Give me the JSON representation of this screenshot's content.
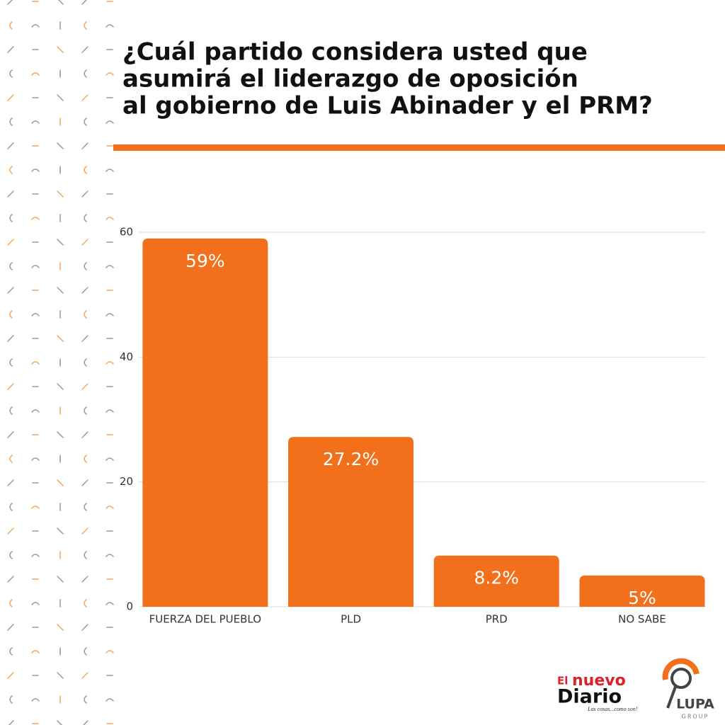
{
  "chart_data": {
    "type": "bar",
    "title": [
      "¿Cuál partido considera usted que",
      "asumirá el liderazgo de oposición",
      "al gobierno de Luis Abinader y el PRM?"
    ],
    "categories": [
      "FUERZA DEL PUEBLO",
      "PLD",
      "PRD",
      "NO SABE"
    ],
    "values": [
      59,
      27.2,
      8.2,
      5
    ],
    "value_labels": [
      "59%",
      "27.2%",
      "8.2%",
      "5%"
    ],
    "color": "#f2701b",
    "ylim": [
      0,
      60
    ],
    "yticks": [
      0,
      20,
      40,
      60
    ],
    "grid": true
  },
  "branding": {
    "newspaper_top": "El",
    "newspaper_mid": "nuevo",
    "newspaper_bottom": "Diario",
    "tagline": "Las cosas...como son!",
    "agency": "LUPA",
    "agency_sub": "GROUP"
  }
}
